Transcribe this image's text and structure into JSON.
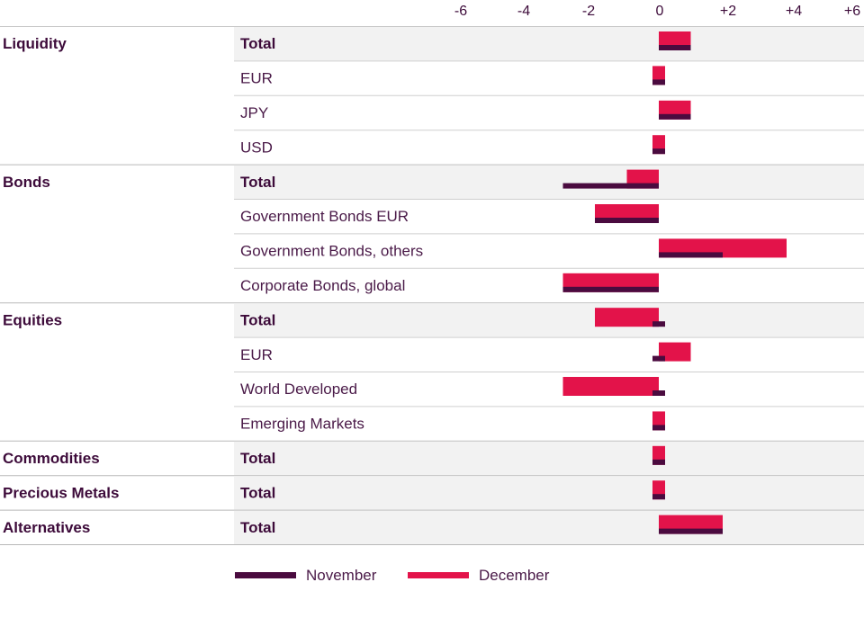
{
  "chart_data": {
    "type": "bar",
    "orientation": "horizontal",
    "xlim": [
      -6,
      6
    ],
    "xticks": [
      "-6",
      "-4",
      "-2",
      "0",
      "+2",
      "+4",
      "+6"
    ],
    "groups": [
      {
        "name": "Liquidity",
        "rows": [
          {
            "label": "Total",
            "november": 1,
            "december": 1
          },
          {
            "label": "EUR",
            "november": 0,
            "december": 0
          },
          {
            "label": "JPY",
            "november": 1,
            "december": 1
          },
          {
            "label": "USD",
            "november": 0,
            "december": 0
          }
        ]
      },
      {
        "name": "Bonds",
        "rows": [
          {
            "label": "Total",
            "november": -3,
            "december": -1
          },
          {
            "label": "Government Bonds EUR",
            "november": -2,
            "december": -2
          },
          {
            "label": "Government Bonds, others",
            "november": 2,
            "december": 4
          },
          {
            "label": "Corporate Bonds, global",
            "november": -3,
            "december": -3
          }
        ]
      },
      {
        "name": "Equities",
        "rows": [
          {
            "label": "Total",
            "november": 0,
            "december": -2
          },
          {
            "label": "EUR",
            "november": 0,
            "december": 1
          },
          {
            "label": "World Developed",
            "november": 0,
            "december": -3
          },
          {
            "label": "Emerging Markets",
            "november": 0,
            "december": 0
          }
        ]
      },
      {
        "name": "Commodities",
        "rows": [
          {
            "label": "Total",
            "november": 0,
            "december": 0
          }
        ]
      },
      {
        "name": "Precious Metals",
        "rows": [
          {
            "label": "Total",
            "november": 0,
            "december": 0
          }
        ]
      },
      {
        "name": "Alternatives",
        "rows": [
          {
            "label": "Total",
            "november": 2,
            "december": 2
          }
        ]
      }
    ],
    "series": [
      {
        "name": "November",
        "color": "#4a0b3f"
      },
      {
        "name": "December",
        "color": "#e3134a"
      }
    ],
    "legend_position": "bottom-center",
    "grid": false
  }
}
